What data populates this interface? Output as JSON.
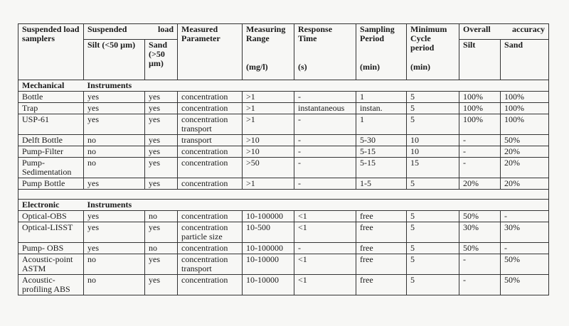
{
  "header": {
    "sampler": "Suspended load samplers",
    "load_a": "Suspended",
    "load_b": "load",
    "silt": "Silt (<50 µm)",
    "sand": "Sand (>50 µm)",
    "parameter": "Measured Parameter",
    "range": "Measuring Range",
    "range_unit": "(mg/l)",
    "response": "Response Time",
    "response_unit": "(s)",
    "sampling": "Sampling Period",
    "sampling_unit": "(min)",
    "cycle": "Minimum Cycle period",
    "cycle_unit": "(min)",
    "acc_a": "Overall",
    "acc_b": "accuracy",
    "acc_silt": "Silt",
    "acc_sand": "Sand"
  },
  "sections": [
    {
      "title_a": "Mechanical",
      "title_b": "Instruments",
      "rows": [
        [
          "Bottle",
          "yes",
          "yes",
          "concentration",
          ">1",
          "-",
          "1",
          "5",
          "100%",
          "100%"
        ],
        [
          "Trap",
          "yes",
          "yes",
          "concentration",
          ">1",
          "instantaneous",
          "instan.",
          "5",
          "100%",
          "100%"
        ],
        [
          "USP-61",
          "yes",
          "yes",
          "concentration transport",
          ">1",
          "-",
          "1",
          "5",
          "100%",
          "100%"
        ],
        [
          "Delft Bottle",
          "no",
          "yes",
          "transport",
          ">10",
          "-",
          "5-30",
          "10",
          "-",
          "50%"
        ],
        [
          "Pump-Filter",
          "no",
          "yes",
          "concentration",
          ">10",
          "-",
          "5-15",
          "10",
          "-",
          "20%"
        ],
        [
          "Pump-Sedimentation",
          "no",
          "yes",
          "concentration",
          ">50",
          "-",
          "5-15",
          "15",
          "-",
          "20%"
        ],
        [
          "Pump Bottle",
          "yes",
          "yes",
          "concentration",
          ">1",
          "-",
          "1-5",
          "5",
          "20%",
          "20%"
        ]
      ]
    },
    {
      "title_a": "Electronic",
      "title_b": "Instruments",
      "rows": [
        [
          "Optical-OBS",
          "yes",
          "no",
          "concentration",
          "10-100000",
          "<1",
          "free",
          "5",
          "50%",
          "-"
        ],
        [
          "Optical-LISST",
          "yes",
          "yes",
          "concentration particle size",
          "10-500",
          "<1",
          "free",
          "5",
          "30%",
          "30%"
        ],
        [
          "Pump- OBS",
          "yes",
          "no",
          "concentration",
          "10-100000",
          "-",
          "free",
          "5",
          "50%",
          "-"
        ],
        [
          "Acoustic-point ASTM",
          "no",
          "yes",
          "concentration transport",
          "10-10000",
          "<1",
          "free",
          "5",
          "-",
          "50%"
        ],
        [
          "Acoustic-profiling ABS",
          "no",
          "yes",
          "concentration",
          "10-10000",
          "<1",
          "free",
          "5",
          "-",
          "50%"
        ]
      ]
    }
  ]
}
